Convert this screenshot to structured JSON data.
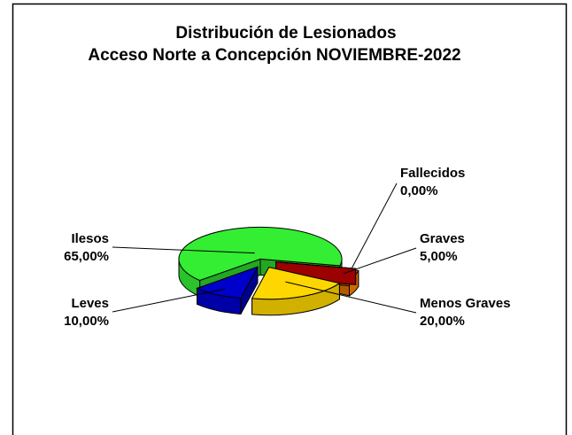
{
  "chart_data": {
    "type": "pie",
    "title": "Distribución de Lesionados",
    "subtitle": "Acceso Norte a Concepción NOVIEMBRE-2022",
    "categories": [
      "Ilesos",
      "Leves",
      "Menos Graves",
      "Graves",
      "Fallecidos"
    ],
    "values": [
      65,
      10,
      20,
      5,
      0
    ],
    "value_labels": [
      "65,00%",
      "10,00%",
      "20,00%",
      "5,00%",
      "0,00%"
    ],
    "colors": [
      "#33ee33",
      "#0000cc",
      "#ffd700",
      "#ff8000",
      "#e00000"
    ]
  }
}
